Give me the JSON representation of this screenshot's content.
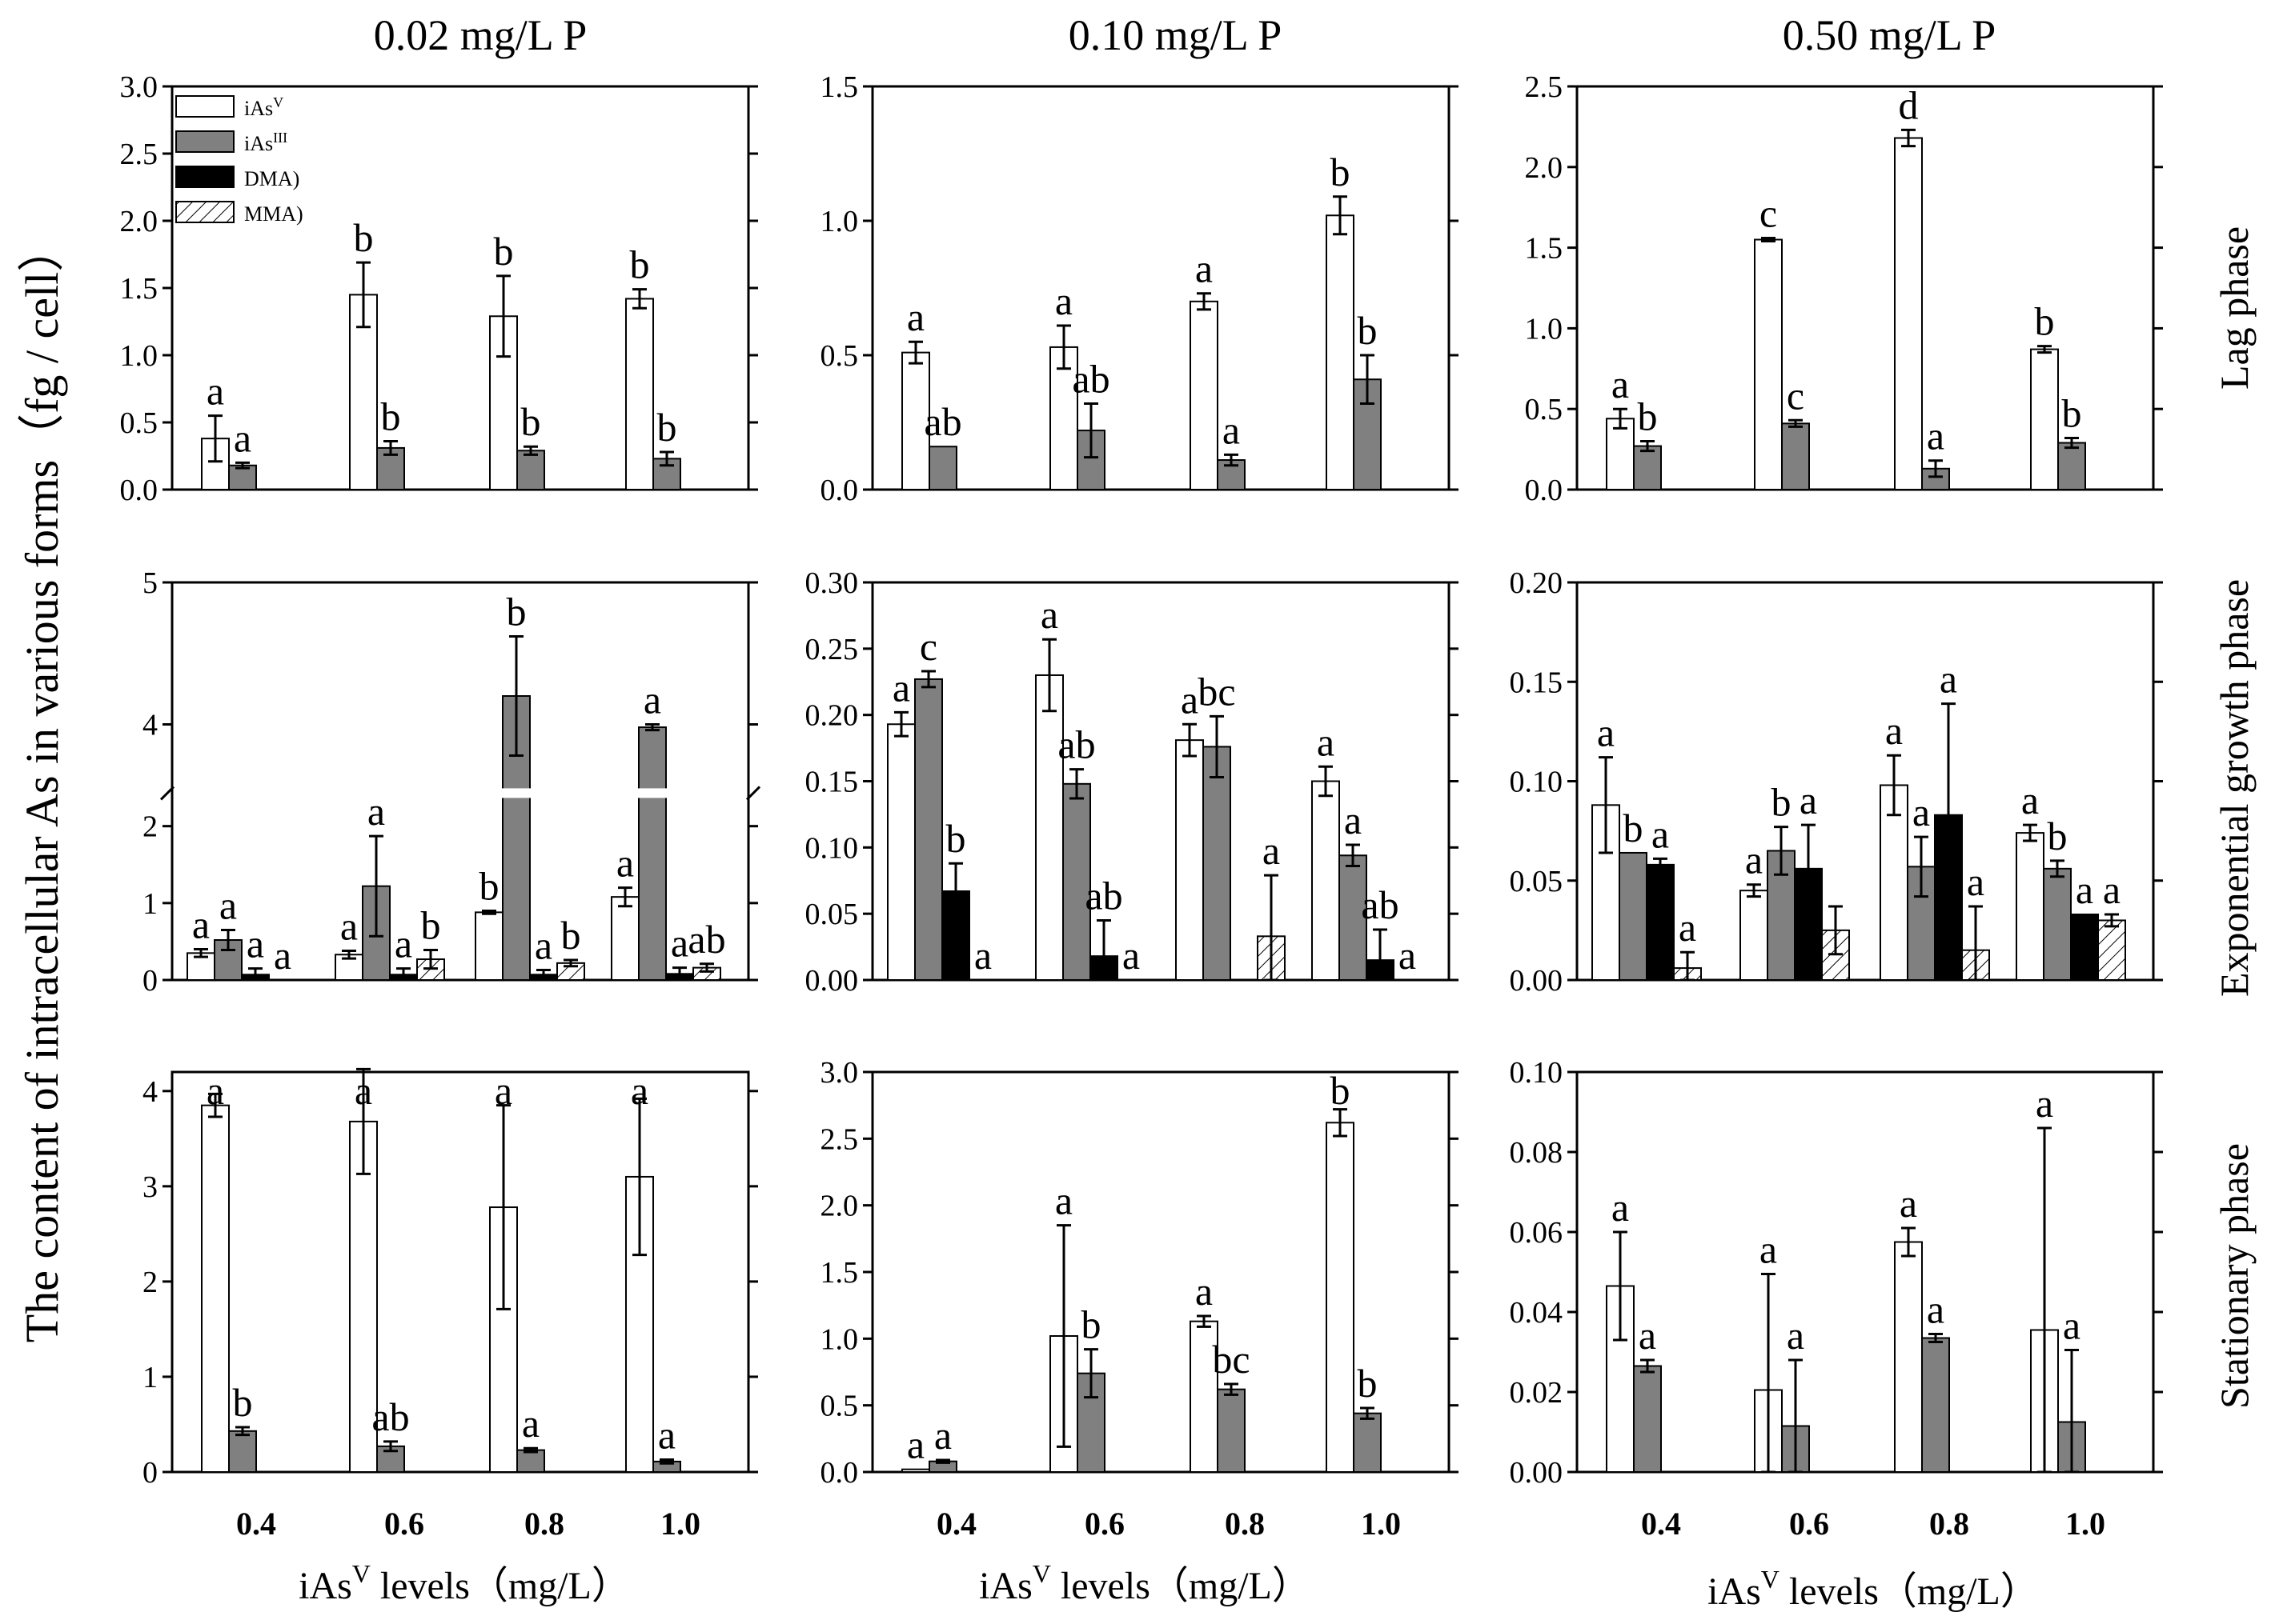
{
  "column_titles": [
    "0.02  mg/L  P",
    "0.10  mg/L  P",
    "0.50  mg/L  P"
  ],
  "row_labels": [
    "Lag phase",
    "Exponential growth phase",
    "Stationary phase"
  ],
  "y_label": "The content of intracellular As in various forms（fg / cell）",
  "x_label": {
    "prefix": "iAs",
    "sup": "V",
    "suffix": "  levels（mg/L）"
  },
  "legend": [
    {
      "base": "iAs",
      "sup": "V",
      "fill": "white"
    },
    {
      "base": "iAs",
      "sup": "III",
      "fill": "gray"
    },
    {
      "base": "DMA)",
      "sup": "",
      "fill": "black"
    },
    {
      "base": "MMA)",
      "sup": "",
      "fill": "hatch"
    }
  ],
  "colors": {
    "iAsV": "#ffffff",
    "iAsIII": "#808080",
    "DMA": "#000000",
    "MMA": "hatch",
    "axis": "#000000"
  },
  "chart_data": [
    {
      "type": "bar",
      "title": "0.02  mg/L  P",
      "row": "Lag phase",
      "categories": [
        "0.4",
        "0.6",
        "0.8",
        "1.0"
      ],
      "ylim": [
        0,
        3.0
      ],
      "yticks": [
        "0.0",
        "0.5",
        "1.0",
        "1.5",
        "2.0",
        "2.5",
        "3.0"
      ],
      "series": [
        {
          "name": "iAsV",
          "values": [
            0.38,
            1.45,
            1.29,
            1.42
          ],
          "errors": [
            0.17,
            0.24,
            0.3,
            0.07
          ],
          "labels": [
            "a",
            "b",
            "b",
            "b"
          ]
        },
        {
          "name": "iAsIII",
          "values": [
            0.18,
            0.31,
            0.29,
            0.23
          ],
          "errors": [
            0.02,
            0.05,
            0.03,
            0.05
          ],
          "labels": [
            "a",
            "b",
            "b",
            "b"
          ]
        }
      ]
    },
    {
      "type": "bar",
      "title": "0.10  mg/L  P",
      "row": "Lag phase",
      "categories": [
        "0.4",
        "0.6",
        "0.8",
        "1.0"
      ],
      "ylim": [
        0,
        1.5
      ],
      "yticks": [
        "0.0",
        "0.5",
        "1.0",
        "1.5"
      ],
      "series": [
        {
          "name": "iAsV",
          "values": [
            0.51,
            0.53,
            0.7,
            1.02
          ],
          "errors": [
            0.04,
            0.08,
            0.03,
            0.07
          ],
          "labels": [
            "a",
            "a",
            "a",
            "b"
          ]
        },
        {
          "name": "iAsIII",
          "values": [
            0.16,
            0.22,
            0.11,
            0.41
          ],
          "errors": [
            0.0,
            0.1,
            0.02,
            0.09
          ],
          "labels": [
            "ab",
            "ab",
            "a",
            "b"
          ]
        }
      ]
    },
    {
      "type": "bar",
      "title": "0.50  mg/L  P",
      "row": "Lag phase",
      "categories": [
        "0.4",
        "0.6",
        "0.8",
        "1.0"
      ],
      "ylim": [
        0,
        2.5
      ],
      "yticks": [
        "0.0",
        "0.5",
        "1.0",
        "1.5",
        "2.0",
        "2.5"
      ],
      "series": [
        {
          "name": "iAsV",
          "values": [
            0.44,
            1.55,
            2.18,
            0.87
          ],
          "errors": [
            0.06,
            0.01,
            0.05,
            0.02
          ],
          "labels": [
            "a",
            "c",
            "d",
            "b"
          ]
        },
        {
          "name": "iAsIII",
          "values": [
            0.27,
            0.41,
            0.13,
            0.29
          ],
          "errors": [
            0.03,
            0.02,
            0.05,
            0.03
          ],
          "labels": [
            "b",
            "c",
            "a",
            "b"
          ]
        }
      ]
    },
    {
      "type": "bar",
      "title": "0.02  mg/L  P",
      "row": "Exponential growth phase",
      "categories": [
        "0.4",
        "0.6",
        "0.8",
        "1.0"
      ],
      "ylim": [
        0,
        5
      ],
      "axis_break": [
        2.4,
        3.6
      ],
      "yticks": [
        "0",
        "1",
        "2",
        "4",
        "5"
      ],
      "series": [
        {
          "name": "iAsV",
          "values": [
            0.35,
            0.33,
            0.88,
            1.08
          ],
          "errors": [
            0.05,
            0.05,
            0.02,
            0.12
          ],
          "labels": [
            "a",
            "a",
            "b",
            "a"
          ]
        },
        {
          "name": "iAsIII",
          "values": [
            0.52,
            1.22,
            4.2,
            3.98
          ],
          "errors": [
            0.13,
            0.65,
            0.42,
            0.02
          ],
          "labels": [
            "a",
            "a",
            "b",
            "a"
          ]
        },
        {
          "name": "DMA",
          "values": [
            0.07,
            0.07,
            0.07,
            0.08
          ],
          "errors": [
            0.08,
            0.08,
            0.06,
            0.08
          ],
          "labels": [
            "a",
            "a",
            "a",
            "a"
          ]
        },
        {
          "name": "MMA",
          "values": [
            0.0,
            0.27,
            0.22,
            0.16
          ],
          "errors": [
            0.0,
            0.12,
            0.04,
            0.05
          ],
          "labels": [
            "a",
            "b",
            "b",
            "ab"
          ]
        }
      ]
    },
    {
      "type": "bar",
      "title": "0.10  mg/L  P",
      "row": "Exponential growth phase",
      "categories": [
        "0.4",
        "0.6",
        "0.8",
        "1.0"
      ],
      "ylim": [
        0,
        0.3
      ],
      "yticks": [
        "0.00",
        "0.05",
        "0.10",
        "0.15",
        "0.20",
        "0.25",
        "0.30"
      ],
      "series": [
        {
          "name": "iAsV",
          "values": [
            0.193,
            0.23,
            0.181,
            0.15
          ],
          "errors": [
            0.009,
            0.027,
            0.012,
            0.011
          ],
          "labels": [
            "a",
            "a",
            "a",
            "a"
          ]
        },
        {
          "name": "iAsIII",
          "values": [
            0.227,
            0.148,
            0.176,
            0.094
          ],
          "errors": [
            0.006,
            0.011,
            0.023,
            0.008
          ],
          "labels": [
            "c",
            "ab",
            "bc",
            "a"
          ]
        },
        {
          "name": "DMA",
          "values": [
            0.067,
            0.018,
            0.0,
            0.015
          ],
          "errors": [
            0.021,
            0.027,
            0.0,
            0.023
          ],
          "labels": [
            "b",
            "ab",
            "",
            "ab"
          ]
        },
        {
          "name": "MMA",
          "values": [
            0.0,
            0.0,
            0.033,
            0.0
          ],
          "errors": [
            0.0,
            0.0,
            0.046,
            0.0
          ],
          "labels": [
            "a",
            "a",
            "a",
            "a"
          ]
        }
      ]
    },
    {
      "type": "bar",
      "title": "0.50  mg/L  P",
      "row": "Exponential growth phase",
      "categories": [
        "0.4",
        "0.6",
        "0.8",
        "1.0"
      ],
      "ylim": [
        0,
        0.2
      ],
      "yticks": [
        "0.00",
        "0.05",
        "0.10",
        "0.15",
        "0.20"
      ],
      "series": [
        {
          "name": "iAsV",
          "values": [
            0.088,
            0.045,
            0.098,
            0.074
          ],
          "errors": [
            0.024,
            0.003,
            0.015,
            0.004
          ],
          "labels": [
            "a",
            "a",
            "a",
            "a"
          ]
        },
        {
          "name": "iAsIII",
          "values": [
            0.064,
            0.065,
            0.057,
            0.056
          ],
          "errors": [
            0.0,
            0.012,
            0.015,
            0.004
          ],
          "labels": [
            "b",
            "b",
            "a",
            "b"
          ]
        },
        {
          "name": "DMA",
          "values": [
            0.058,
            0.056,
            0.083,
            0.033
          ],
          "errors": [
            0.003,
            0.022,
            0.056,
            0.0
          ],
          "labels": [
            "a",
            "a",
            "a",
            "a"
          ]
        },
        {
          "name": "MMA",
          "values": [
            0.006,
            0.025,
            0.015,
            0.03
          ],
          "errors": [
            0.008,
            0.012,
            0.022,
            0.003
          ],
          "labels": [
            "a",
            "",
            "a",
            "a"
          ]
        }
      ]
    },
    {
      "type": "bar",
      "title": "0.02  mg/L  P",
      "row": "Stationary phase",
      "categories": [
        "0.4",
        "0.6",
        "0.8",
        "1.0"
      ],
      "ylim": [
        0,
        4.2
      ],
      "yticks": [
        "0",
        "1",
        "2",
        "3",
        "4"
      ],
      "series": [
        {
          "name": "iAsV",
          "values": [
            3.85,
            3.68,
            2.78,
            3.1
          ],
          "errors": [
            0.12,
            0.55,
            1.07,
            0.82
          ],
          "labels": [
            "a",
            "a",
            "a",
            "a"
          ]
        },
        {
          "name": "iAsIII",
          "values": [
            0.43,
            0.27,
            0.23,
            0.11
          ],
          "errors": [
            0.04,
            0.05,
            0.02,
            0.02
          ],
          "labels": [
            "b",
            "ab",
            "a",
            "a"
          ]
        }
      ]
    },
    {
      "type": "bar",
      "title": "0.10  mg/L  P",
      "row": "Stationary phase",
      "categories": [
        "0.4",
        "0.6",
        "0.8",
        "1.0"
      ],
      "ylim": [
        0,
        3.0
      ],
      "yticks": [
        "0.0",
        "0.5",
        "1.0",
        "1.5",
        "2.0",
        "2.5",
        "3.0"
      ],
      "series": [
        {
          "name": "iAsV",
          "values": [
            0.02,
            1.02,
            1.13,
            2.62
          ],
          "errors": [
            0.0,
            0.83,
            0.04,
            0.1
          ],
          "labels": [
            "a",
            "a",
            "a",
            "b"
          ]
        },
        {
          "name": "iAsIII",
          "values": [
            0.08,
            0.74,
            0.62,
            0.44
          ],
          "errors": [
            0.01,
            0.18,
            0.04,
            0.04
          ],
          "labels": [
            "a",
            "b",
            "bc",
            "b"
          ]
        }
      ]
    },
    {
      "type": "bar",
      "title": "0.50  mg/L  P",
      "row": "Stationary phase",
      "categories": [
        "0.4",
        "0.6",
        "0.8",
        "1.0"
      ],
      "ylim": [
        0,
        0.1
      ],
      "yticks": [
        "0.00",
        "0.02",
        "0.04",
        "0.06",
        "0.08",
        "0.10"
      ],
      "series": [
        {
          "name": "iAsV",
          "values": [
            0.0465,
            0.0205,
            0.0575,
            0.0355
          ],
          "errors": [
            0.0135,
            0.029,
            0.0035,
            0.0505
          ],
          "labels": [
            "a",
            "a",
            "a",
            "a"
          ]
        },
        {
          "name": "iAsIII",
          "values": [
            0.0265,
            0.0115,
            0.0335,
            0.0125
          ],
          "errors": [
            0.0015,
            0.0165,
            0.001,
            0.018
          ],
          "labels": [
            "a",
            "a",
            "a",
            "a"
          ]
        }
      ]
    }
  ]
}
